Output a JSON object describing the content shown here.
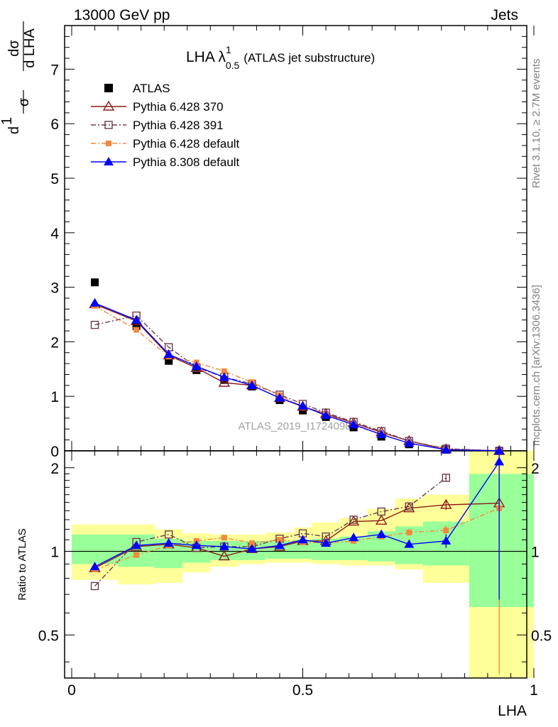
{
  "header": {
    "left": "13000 GeV pp",
    "right": "Jets"
  },
  "side_labels": {
    "rivet": "Rivet 3.1.10, ≥ 2.7M events",
    "mcplots": "mcplots.cern.ch [arXiv:1306.3436]"
  },
  "chart_data": [
    {
      "type": "line",
      "title_main": "LHA λ",
      "title_sup": "1",
      "title_sub": "0.5",
      "title_rest": "(ATLAS jet substructure)",
      "watermark": "ATLAS_2019_I1724098",
      "ylabel_parts": [
        "1",
        "σ",
        "dσ",
        "d LHA",
        "d"
      ],
      "xlim": [
        0,
        1
      ],
      "ylim": [
        0,
        7.8
      ],
      "yticks": [
        "0",
        "1",
        "2",
        "3",
        "4",
        "5",
        "6",
        "7"
      ],
      "x": [
        0.05,
        0.14,
        0.21,
        0.27,
        0.33,
        0.39,
        0.45,
        0.5,
        0.55,
        0.61,
        0.67,
        0.73,
        0.81,
        0.925
      ],
      "series": [
        {
          "name": "ATLAS",
          "color": "#000000",
          "marker": "square",
          "dash": "none",
          "values": [
            3.09,
            2.29,
            1.65,
            1.48,
            1.3,
            1.18,
            0.93,
            0.74,
            0.62,
            0.43,
            0.26,
            0.12,
            0.02,
            0.0
          ]
        },
        {
          "name": "Pythia 6.428 370",
          "color": "#8b1a1a",
          "marker": "triangle-open",
          "dash": "none",
          "values": [
            2.69,
            2.38,
            1.75,
            1.52,
            1.25,
            1.2,
            0.97,
            0.81,
            0.68,
            0.51,
            0.34,
            0.18,
            0.03,
            0.0
          ]
        },
        {
          "name": "Pythia 6.428 391",
          "color": "#6b3a4e",
          "marker": "square-open",
          "dash": "dashdot",
          "values": [
            2.31,
            2.48,
            1.9,
            1.53,
            1.35,
            1.23,
            1.03,
            0.86,
            0.7,
            0.53,
            0.36,
            0.18,
            0.04,
            0.0
          ]
        },
        {
          "name": "Pythia 6.428 default",
          "color": "#f5873c",
          "marker": "square-filled",
          "dash": "dashdot",
          "values": [
            2.66,
            2.22,
            1.73,
            1.62,
            1.46,
            1.26,
            1.02,
            0.8,
            0.67,
            0.47,
            0.3,
            0.14,
            0.03,
            0.0
          ]
        },
        {
          "name": "Pythia 8.308 default",
          "color": "#0000ff",
          "marker": "triangle-filled",
          "dash": "none",
          "values": [
            2.71,
            2.4,
            1.77,
            1.55,
            1.35,
            1.2,
            0.97,
            0.82,
            0.65,
            0.48,
            0.3,
            0.14,
            0.02,
            0.0
          ]
        }
      ]
    },
    {
      "type": "line",
      "ylabel": "Ratio to ATLAS",
      "xlabel": "LHA",
      "xlim": [
        0,
        1
      ],
      "ylim": [
        0.35,
        2.3
      ],
      "yticks": [
        "0.5",
        "1",
        "2"
      ],
      "xticks": [
        "0",
        "0.5",
        "1"
      ],
      "x": [
        0.05,
        0.14,
        0.21,
        0.27,
        0.33,
        0.39,
        0.45,
        0.5,
        0.55,
        0.61,
        0.67,
        0.73,
        0.81,
        0.925
      ],
      "bands": {
        "bin_edges": [
          0,
          0.1,
          0.18,
          0.24,
          0.3,
          0.36,
          0.42,
          0.48,
          0.52,
          0.58,
          0.64,
          0.7,
          0.76,
          0.86,
          1.0
        ],
        "green_lo": [
          0.9,
          0.88,
          0.87,
          0.91,
          0.93,
          0.93,
          0.94,
          0.94,
          0.93,
          0.93,
          0.92,
          0.9,
          0.89,
          0.63
        ],
        "green_hi": [
          1.15,
          1.15,
          1.11,
          1.09,
          1.09,
          1.09,
          1.09,
          1.1,
          1.11,
          1.13,
          1.18,
          1.23,
          1.28,
          1.9
        ],
        "yellow_lo": [
          0.79,
          0.76,
          0.77,
          0.84,
          0.88,
          0.9,
          0.91,
          0.91,
          0.9,
          0.89,
          0.89,
          0.86,
          0.77,
          0.1
        ],
        "yellow_hi": [
          1.25,
          1.25,
          1.2,
          1.16,
          1.15,
          1.15,
          1.17,
          1.22,
          1.27,
          1.32,
          1.42,
          1.55,
          1.6,
          2.5
        ]
      },
      "series": [
        {
          "name": "Pythia 6.428 370",
          "color": "#8b1a1a",
          "marker": "triangle-open",
          "dash": "none",
          "values": [
            0.87,
            1.04,
            1.06,
            1.03,
            0.96,
            1.02,
            1.04,
            1.09,
            1.09,
            1.28,
            1.29,
            1.43,
            1.47,
            1.49
          ],
          "errors": [
            0,
            0,
            0,
            0,
            0,
            0,
            0,
            0,
            0,
            0,
            0,
            0,
            0.06,
            0
          ]
        },
        {
          "name": "Pythia 6.428 391",
          "color": "#6b3a4e",
          "marker": "square-open",
          "dash": "dashdot",
          "values": [
            0.75,
            1.08,
            1.15,
            1.03,
            1.04,
            1.04,
            1.11,
            1.16,
            1.13,
            1.3,
            1.39,
            1.45,
            1.84,
            0.0
          ],
          "errors": [
            0,
            0,
            0,
            0,
            0,
            0,
            0,
            0,
            0,
            0,
            0,
            0,
            0.05,
            0
          ]
        },
        {
          "name": "Pythia 6.428 default",
          "color": "#f5873c",
          "marker": "square-filled",
          "dash": "dashdot",
          "values": [
            0.86,
            0.97,
            1.05,
            1.09,
            1.12,
            1.07,
            1.1,
            1.08,
            1.07,
            1.09,
            1.13,
            1.17,
            1.19,
            1.43
          ],
          "errors": [
            0,
            0,
            0,
            0,
            0,
            0,
            0,
            0,
            0,
            0,
            0,
            0.03,
            0.05,
            1.2
          ]
        },
        {
          "name": "Pythia 8.308 default",
          "color": "#0000ff",
          "marker": "triangle-filled",
          "dash": "none",
          "values": [
            0.88,
            1.05,
            1.07,
            1.05,
            1.04,
            1.02,
            1.05,
            1.1,
            1.07,
            1.12,
            1.15,
            1.06,
            1.09,
            2.1
          ],
          "errors": [
            0,
            0,
            0,
            0,
            0,
            0,
            0,
            0,
            0,
            0,
            0,
            0,
            0.06,
            1.43
          ]
        }
      ]
    }
  ]
}
